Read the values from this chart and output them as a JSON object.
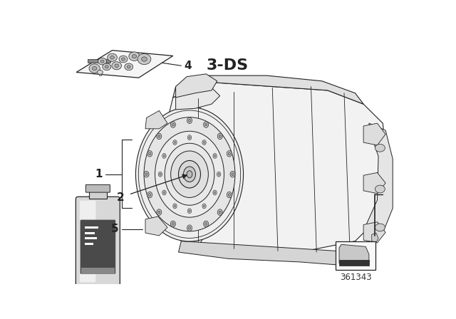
{
  "bg_color": "#ffffff",
  "part_number": "361343",
  "label_3ds": "3-DS",
  "line_color": "#222222",
  "fill_body": "#f2f2f2",
  "fill_top": "#e0e0e0",
  "fill_bell": "#eeeeee",
  "fill_ring": "#e5e5e5",
  "fill_hub": "#d8d8d8",
  "fill_bolt": "#cccccc",
  "fill_bracket": "#e8e8e8",
  "fill_bottle_body": "#e0e0e0",
  "fill_bottle_label": "#555555",
  "fill_bottle_cap": "#aaaaaa",
  "inset_bg": "#f8f8f8",
  "inset_border": "#333333"
}
